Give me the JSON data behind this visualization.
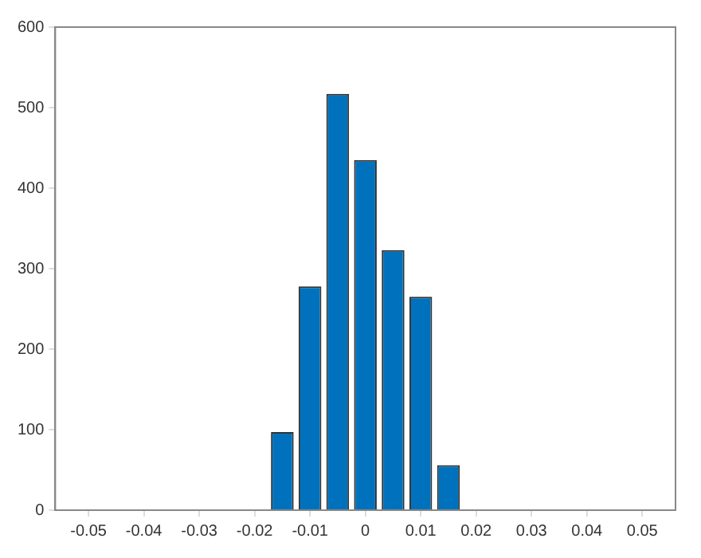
{
  "chart_data": {
    "type": "bar",
    "x": [
      -0.015,
      -0.01,
      -0.005,
      0,
      0.005,
      0.01,
      0.015
    ],
    "values": [
      97,
      278,
      517,
      435,
      323,
      265,
      56
    ],
    "color": "#0072bd",
    "xlim": [
      -0.056,
      0.056
    ],
    "xticks": [
      -0.05,
      -0.04,
      -0.03,
      -0.02,
      -0.01,
      0,
      0.01,
      0.02,
      0.03,
      0.04,
      0.05
    ],
    "ylim": [
      0,
      600
    ],
    "yticks": [
      0,
      100,
      200,
      300,
      400,
      500,
      600
    ],
    "grid": false,
    "legend": false
  }
}
